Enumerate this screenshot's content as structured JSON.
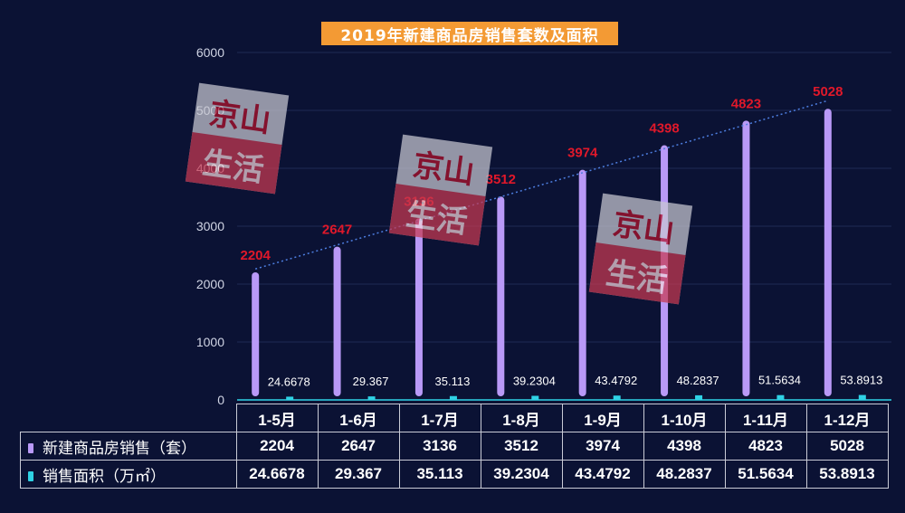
{
  "colors": {
    "background": "#0b1234",
    "title_bg": "#f39a34",
    "bar_units": "#b999f7",
    "bar_area": "#2fd2e5",
    "data_label_units": "#e0182a",
    "data_label_area": "#ffffff",
    "trend_line": "#4d7ee0",
    "watermark_bg": "#c8c8d2",
    "watermark_text": "#b3122c"
  },
  "watermark": {
    "line1": "京山",
    "line2": "生活"
  },
  "chart_data": {
    "type": "bar",
    "title": "2019年新建商品房销售套数及面积",
    "categories": [
      "1-5月",
      "1-6月",
      "1-7月",
      "1-8月",
      "1-9月",
      "1-10月",
      "1-11月",
      "1-12月"
    ],
    "ylim": [
      0,
      6000
    ],
    "yticks": [
      0,
      1000,
      2000,
      3000,
      4000,
      5000,
      6000
    ],
    "grid": true,
    "series": [
      {
        "name": "新建商品房销售（套）",
        "values": [
          2204,
          2647,
          3136,
          3512,
          3974,
          4398,
          4823,
          5028
        ]
      },
      {
        "name": "销售面积（万㎡）",
        "values": [
          24.6678,
          29.367,
          35.113,
          39.2304,
          43.4792,
          48.2837,
          51.5634,
          53.8913
        ]
      }
    ],
    "data_labels": {
      "units": [
        "2204",
        "2647",
        "3136",
        "3512",
        "3974",
        "4398",
        "4823",
        "5028"
      ],
      "area": [
        "24.6678",
        "29.367",
        "35.113",
        "39.2304",
        "43.4792",
        "48.2837",
        "51.5634",
        "53.8913"
      ]
    },
    "trendline": {
      "series": "新建商品房销售（套）",
      "style": "dotted"
    },
    "legend": "data-table"
  },
  "table": {
    "row1_label": "新建商品房销售（套）",
    "row2_label": "销售面积（万㎡）"
  }
}
